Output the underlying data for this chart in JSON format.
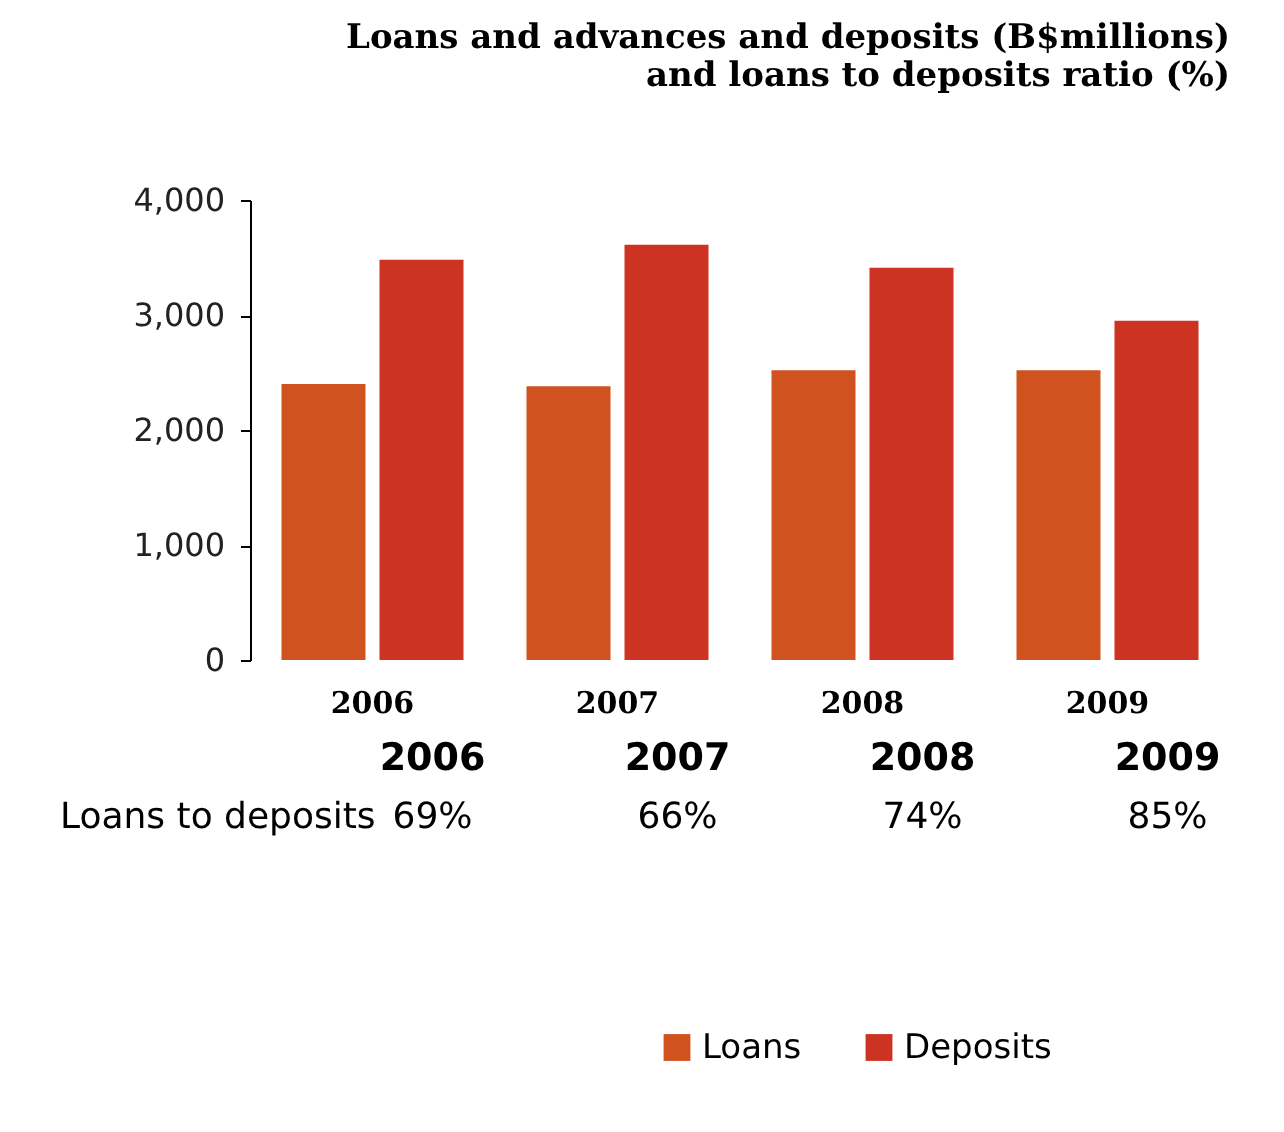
{
  "chart_data": {
    "type": "bar",
    "title": [
      "Loans and advances and deposits (B$millions)",
      "and loans to deposits ratio (%)"
    ],
    "categories": [
      "2006",
      "2007",
      "2008",
      "2009"
    ],
    "series": [
      {
        "name": "Loans",
        "color": "#d0521e",
        "values": [
          2400,
          2380,
          2520,
          2520
        ]
      },
      {
        "name": "Deposits",
        "color": "#cc3322",
        "values": [
          3480,
          3610,
          3410,
          2950
        ]
      }
    ],
    "ylim": [
      0,
      4000
    ],
    "yticks": [
      0,
      {
        "value": 1000,
        "label": "1,000"
      },
      {
        "value": 2000,
        "label": "2,000"
      },
      {
        "value": 3000,
        "label": "3,000"
      },
      {
        "value": 4000,
        "label": "4,000"
      }
    ],
    "grid": false,
    "legend": "bottom",
    "annotations": [
      "2006",
      "2007",
      "2008",
      "2009",
      "Loans to deposits",
      "69%",
      "66%",
      "74%",
      "85%"
    ]
  }
}
